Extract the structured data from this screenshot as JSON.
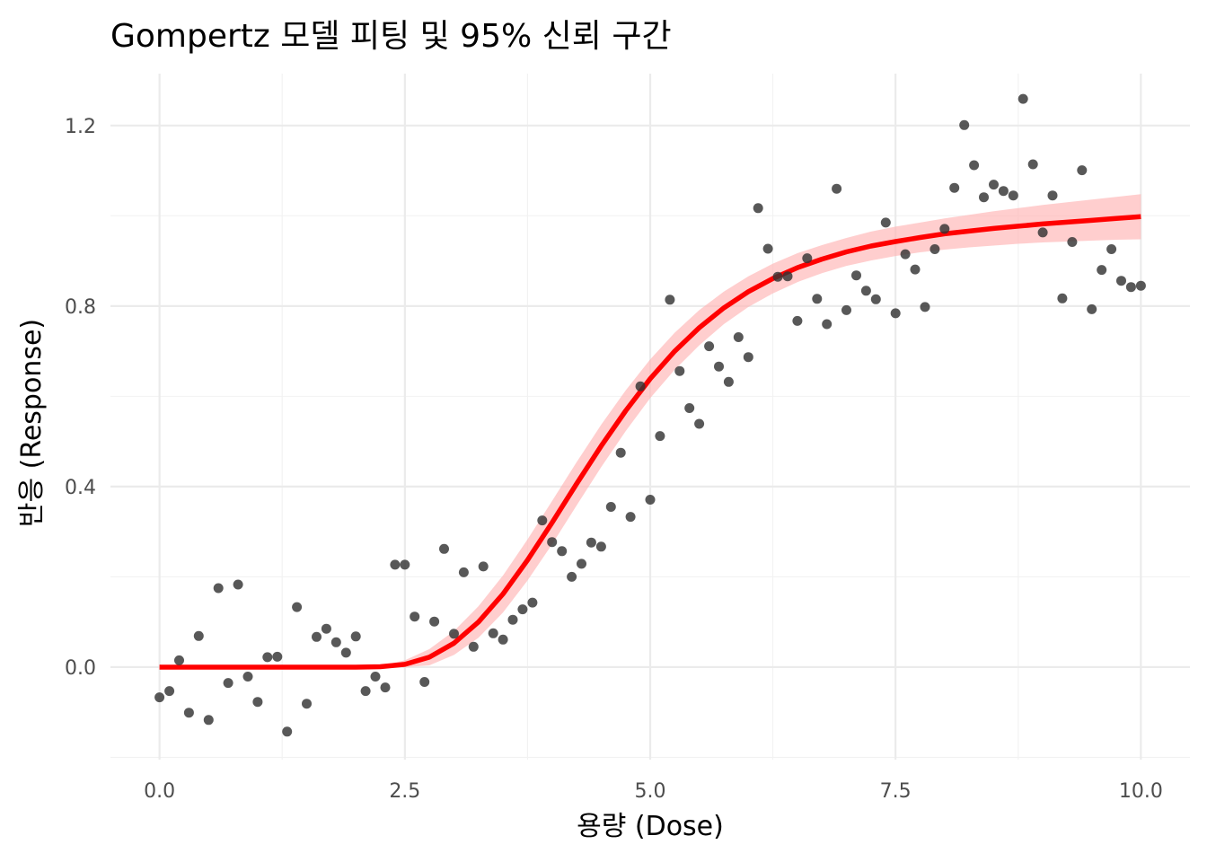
{
  "chart_data": {
    "type": "scatter",
    "title": "Gompertz 모델 피팅 및 95% 신뢰 구간",
    "xlabel": "용량 (Dose)",
    "ylabel": "반응 (Response)",
    "xlim": [
      -0.5,
      10.5
    ],
    "ylim": [
      -0.205,
      1.315
    ],
    "x_ticks": [
      0.0,
      2.5,
      5.0,
      7.5,
      10.0
    ],
    "x_tick_labels": [
      "0.0",
      "2.5",
      "5.0",
      "7.5",
      "10.0"
    ],
    "y_ticks": [
      0.0,
      0.4,
      0.8,
      1.2
    ],
    "y_tick_labels": [
      "0.0",
      "0.4",
      "0.8",
      "1.2"
    ],
    "grid": true,
    "colors": {
      "points": "#333333",
      "fit_line": "#ff0000",
      "ci_band": "#ffb3b3"
    },
    "series": [
      {
        "type": "scatter",
        "x": [
          0.0,
          0.1,
          0.2,
          0.3,
          0.4,
          0.5,
          0.6,
          0.7,
          0.8,
          0.9,
          1.0,
          1.1,
          1.2,
          1.3,
          1.4,
          1.5,
          1.6,
          1.7,
          1.8,
          1.9,
          2.0,
          2.1,
          2.2,
          2.3,
          2.4,
          2.5,
          2.6,
          2.7,
          2.8,
          2.9,
          3.0,
          3.1,
          3.2,
          3.3,
          3.4,
          3.5,
          3.6,
          3.7,
          3.8,
          3.9,
          4.0,
          4.1,
          4.2,
          4.3,
          4.4,
          4.5,
          4.6,
          4.7,
          4.8,
          4.9,
          5.0,
          5.1,
          5.2,
          5.3,
          5.4,
          5.5,
          5.6,
          5.7,
          5.8,
          5.9,
          6.0,
          6.1,
          6.2,
          6.3,
          6.4,
          6.5,
          6.6,
          6.7,
          6.8,
          6.9,
          7.0,
          7.1,
          7.2,
          7.3,
          7.4,
          7.5,
          7.6,
          7.7,
          7.8,
          7.9,
          8.0,
          8.1,
          8.2,
          8.3,
          8.4,
          8.5,
          8.6,
          8.7,
          8.8,
          8.9,
          9.0,
          9.1,
          9.2,
          9.3,
          9.4,
          9.5,
          9.6,
          9.7,
          9.8,
          9.9,
          10.0
        ],
        "y": [
          -0.067,
          -0.053,
          0.015,
          -0.101,
          0.069,
          -0.117,
          0.175,
          -0.035,
          0.183,
          -0.021,
          -0.077,
          0.022,
          0.023,
          -0.143,
          0.133,
          -0.081,
          0.067,
          0.085,
          0.055,
          0.032,
          0.068,
          -0.053,
          -0.021,
          -0.045,
          0.227,
          0.227,
          0.112,
          -0.033,
          0.101,
          0.262,
          0.074,
          0.21,
          0.045,
          0.223,
          0.075,
          0.061,
          0.105,
          0.128,
          0.143,
          0.325,
          0.277,
          0.257,
          0.2,
          0.229,
          0.276,
          0.267,
          0.355,
          0.475,
          0.333,
          0.622,
          0.371,
          0.512,
          0.814,
          0.656,
          0.574,
          0.539,
          0.711,
          0.666,
          0.632,
          0.731,
          0.687,
          1.017,
          0.927,
          0.865,
          0.866,
          0.767,
          0.906,
          0.816,
          0.76,
          1.06,
          0.791,
          0.868,
          0.834,
          0.815,
          0.985,
          0.784,
          0.915,
          0.881,
          0.798,
          0.926,
          0.971,
          1.062,
          1.201,
          1.112,
          1.041,
          1.069,
          1.055,
          1.045,
          1.259,
          1.114,
          0.963,
          1.045,
          0.817,
          0.942,
          1.101,
          0.793,
          0.88,
          0.926,
          0.856,
          0.842,
          0.845
        ]
      },
      {
        "type": "line",
        "model": "Gompertz",
        "x": [
          0.0,
          0.5,
          1.0,
          1.5,
          2.0,
          2.25,
          2.5,
          2.75,
          3.0,
          3.25,
          3.5,
          3.75,
          4.0,
          4.25,
          4.5,
          4.75,
          5.0,
          5.25,
          5.5,
          5.75,
          6.0,
          6.25,
          6.5,
          6.75,
          7.0,
          7.25,
          7.5,
          7.75,
          8.0,
          8.25,
          8.5,
          8.75,
          9.0,
          9.25,
          9.5,
          9.75,
          10.0
        ],
        "y": [
          0.0,
          0.0,
          0.0,
          0.0,
          0.0,
          0.001,
          0.006,
          0.022,
          0.053,
          0.1,
          0.162,
          0.237,
          0.32,
          0.406,
          0.49,
          0.568,
          0.639,
          0.7,
          0.752,
          0.796,
          0.832,
          0.861,
          0.885,
          0.904,
          0.92,
          0.933,
          0.943,
          0.952,
          0.96,
          0.966,
          0.972,
          0.977,
          0.982,
          0.986,
          0.99,
          0.994,
          0.998
        ],
        "ci_lower": [
          0.0,
          0.0,
          0.0,
          0.0,
          0.0,
          0.0,
          0.0,
          0.004,
          0.027,
          0.065,
          0.121,
          0.192,
          0.272,
          0.358,
          0.443,
          0.523,
          0.596,
          0.659,
          0.713,
          0.76,
          0.798,
          0.828,
          0.853,
          0.873,
          0.889,
          0.901,
          0.911,
          0.919,
          0.925,
          0.93,
          0.934,
          0.938,
          0.941,
          0.943,
          0.945,
          0.947,
          0.948
        ],
        "ci_upper": [
          0.0,
          0.0,
          0.0,
          0.0,
          0.0,
          0.003,
          0.015,
          0.04,
          0.08,
          0.135,
          0.203,
          0.283,
          0.368,
          0.454,
          0.537,
          0.613,
          0.682,
          0.741,
          0.791,
          0.832,
          0.866,
          0.894,
          0.917,
          0.935,
          0.951,
          0.965,
          0.976,
          0.985,
          0.994,
          1.002,
          1.01,
          1.017,
          1.024,
          1.03,
          1.036,
          1.042,
          1.048
        ]
      }
    ]
  }
}
